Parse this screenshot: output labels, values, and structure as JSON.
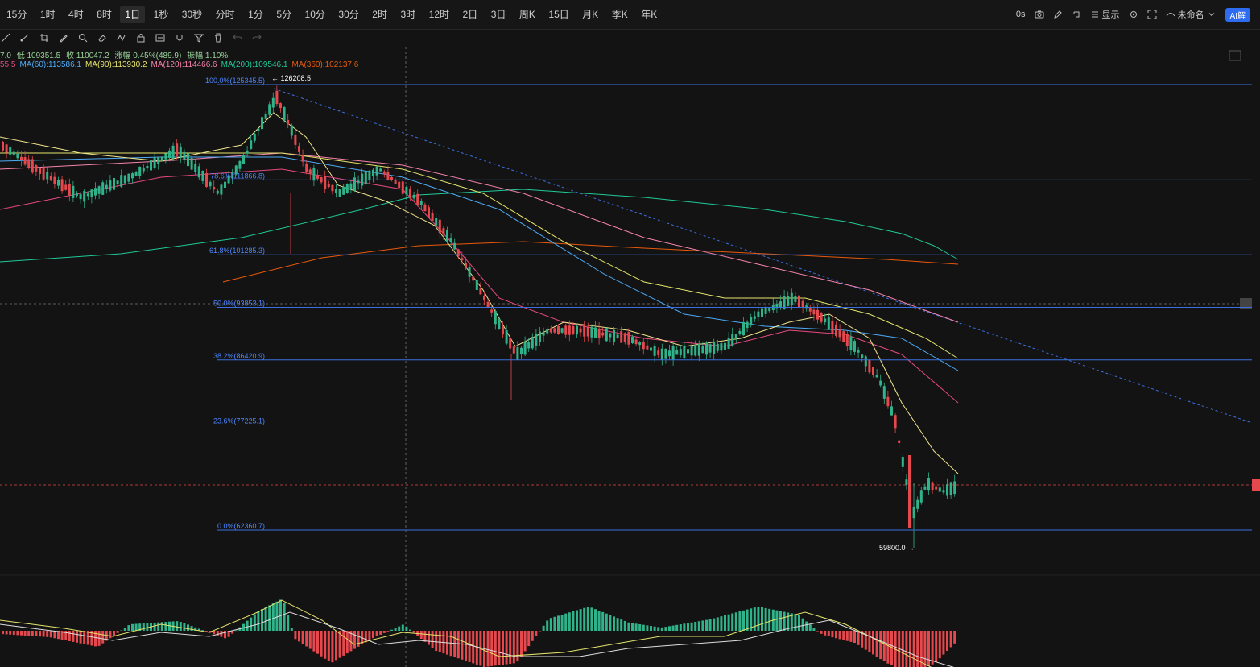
{
  "periods": [
    "15分",
    "1时",
    "4时",
    "8时",
    "1日",
    "1秒",
    "30秒",
    "分时",
    "1分",
    "5分",
    "10分",
    "30分",
    "2时",
    "3时",
    "12时",
    "2日",
    "3日",
    "周K",
    "15日",
    "月K",
    "季K",
    "年K"
  ],
  "active_period": "1日",
  "right_tools": {
    "timer": "0s",
    "display_label": "显示",
    "layout_name": "未命名",
    "ai_badge": "AI解"
  },
  "ohlc": {
    "open_fragment": "7.0",
    "low": "低 109351.5",
    "close": "收 110047.2",
    "change": "涨幅 0.45%(489.9)",
    "amplitude": "振幅 1.10%"
  },
  "ma_legend": [
    {
      "text": "55.5",
      "color": "#e64980"
    },
    {
      "text": "MA(60):113586.1",
      "color": "#4dabf7"
    },
    {
      "text": "MA(90):113930.2",
      "color": "#e5e56b"
    },
    {
      "text": "MA(120):114466.6",
      "color": "#f783ac"
    },
    {
      "text": "MA(200):109546.1",
      "color": "#20c997"
    },
    {
      "text": "MA(360):102137.6",
      "color": "#e8590c"
    }
  ],
  "fib_levels": [
    {
      "label": "100.0%(125345.5)",
      "price": 125345.5
    },
    {
      "label": "78.6%(111866.8)",
      "price": 111866.8
    },
    {
      "label": "61.8%(101285.3)",
      "price": 101285.3
    },
    {
      "label": "50.0%(93853.1)",
      "price": 93853.1
    },
    {
      "label": "38.2%(86420.9)",
      "price": 86420.9
    },
    {
      "label": "23.6%(77225.1)",
      "price": 77225.1
    },
    {
      "label": "0.0%(62360.7)",
      "price": 62360.7
    }
  ],
  "annotations": {
    "high": "← 126208.5",
    "low": "59800.0 →"
  },
  "colors": {
    "up": "#2fb38a",
    "down": "#e5484d",
    "fib": "#3b6fe0",
    "crosshair": "#777777",
    "price_line": "#e5484d"
  },
  "chart_data": {
    "type": "candlestick",
    "high": 126208.5,
    "low": 59800.0,
    "current_price_marker": 70000,
    "moving_averages": [
      "MA(60)",
      "MA(90)",
      "MA(120)",
      "MA(200)",
      "MA(360)"
    ]
  }
}
